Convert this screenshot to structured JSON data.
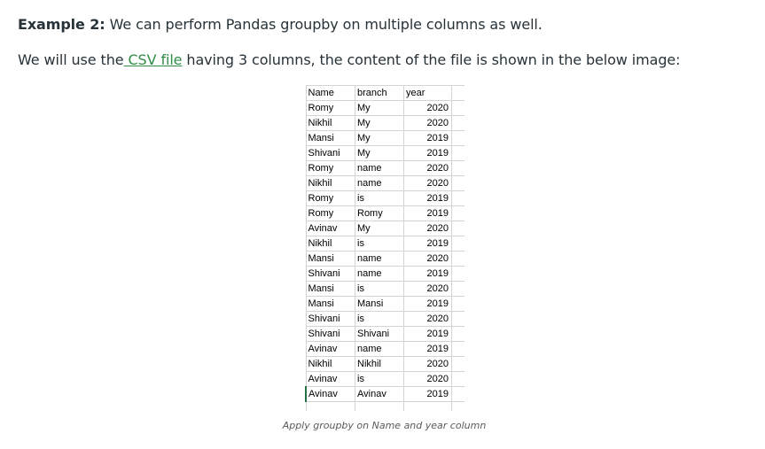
{
  "paragraph1": {
    "label": "Example 2:",
    "text": " We can perform Pandas groupby on multiple columns as well."
  },
  "paragraph2": {
    "before": "We will use the",
    "link": " CSV file",
    "after": " having 3 columns, the content of the file is shown in the below image:"
  },
  "table": {
    "headers": [
      "Name",
      "branch",
      "year"
    ],
    "rows": [
      [
        "Romy",
        "My",
        "2020"
      ],
      [
        "Nikhil",
        "My",
        "2020"
      ],
      [
        "Mansi",
        "My",
        "2019"
      ],
      [
        "Shivani",
        "My",
        "2019"
      ],
      [
        "Romy",
        "name",
        "2020"
      ],
      [
        "Nikhil",
        "name",
        "2020"
      ],
      [
        "Romy",
        "is",
        "2019"
      ],
      [
        "Romy",
        "Romy",
        "2019"
      ],
      [
        "Avinav",
        "My",
        "2020"
      ],
      [
        "Nikhil",
        "is",
        "2019"
      ],
      [
        "Mansi",
        "name",
        "2020"
      ],
      [
        "Shivani",
        "name",
        "2019"
      ],
      [
        "Mansi",
        "is",
        "2020"
      ],
      [
        "Mansi",
        "Mansi",
        "2019"
      ],
      [
        "Shivani",
        "is",
        "2020"
      ],
      [
        "Shivani",
        "Shivani",
        "2019"
      ],
      [
        "Avinav",
        "name",
        "2019"
      ],
      [
        "Nikhil",
        "Nikhil",
        "2020"
      ],
      [
        "Avinav",
        "is",
        "2020"
      ],
      [
        "Avinav",
        "Avinav",
        "2019"
      ]
    ]
  },
  "caption": "Apply groupby on Name and year column",
  "colors": {
    "text": "#273239",
    "link": "#2f8d46",
    "grid": "#d4d4d4",
    "active_cell": "#217346"
  }
}
